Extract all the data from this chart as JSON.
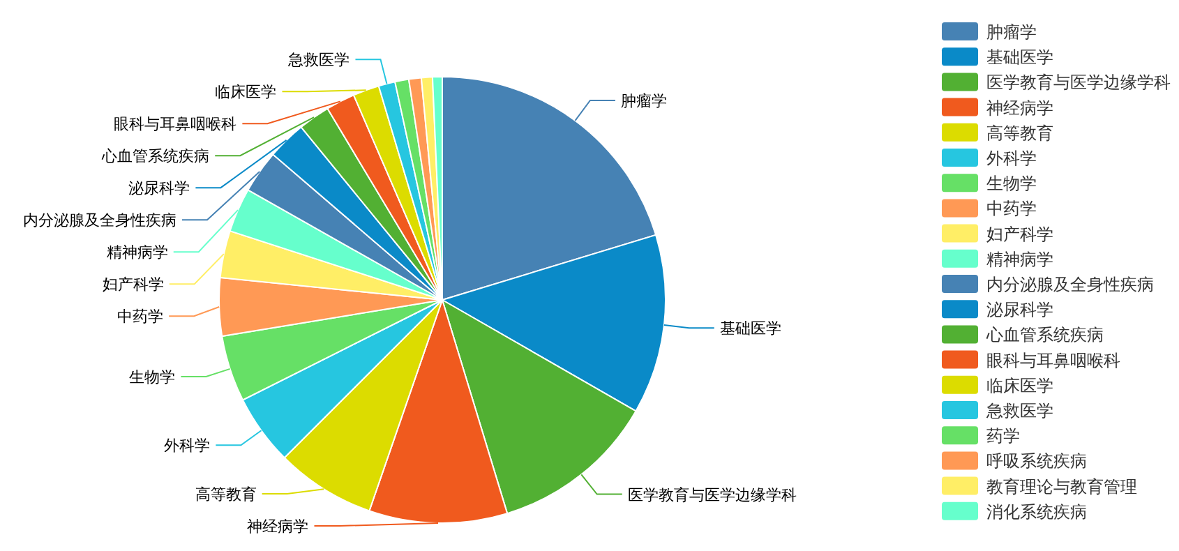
{
  "chart_data": {
    "type": "pie",
    "legend": "right",
    "categories": [
      "肿瘤学",
      "基础医学",
      "医学教育与医学边缘学科",
      "神经病学",
      "高等教育",
      "外科学",
      "生物学",
      "中药学",
      "妇产科学",
      "精神病学",
      "内分泌腺及全身性疾病",
      "泌尿科学",
      "心血管系统疾病",
      "眼科与耳鼻咽喉科",
      "临床医学",
      "急救医学",
      "药学",
      "呼吸系统疾病",
      "教育理论与教育管理",
      "消化系统疾病"
    ],
    "values": [
      20.3,
      13,
      12,
      10,
      7.2,
      5.1,
      4.8,
      4.2,
      3.4,
      3.2,
      3.1,
      2.8,
      2.3,
      2.1,
      1.9,
      1.2,
      1.0,
      0.9,
      0.8,
      0.7
    ],
    "colors": [
      "#4682b4",
      "#0a8ac8",
      "#52b033",
      "#f05a1e",
      "#dcdc00",
      "#26c6e0",
      "#66e066",
      "#ff9955",
      "#ffee66",
      "#66ffcc",
      "#4682b4",
      "#0a8ac8",
      "#52b033",
      "#f05a1e",
      "#dcdc00",
      "#26c6e0",
      "#66e066",
      "#ff9955",
      "#ffee66",
      "#66ffcc"
    ]
  }
}
